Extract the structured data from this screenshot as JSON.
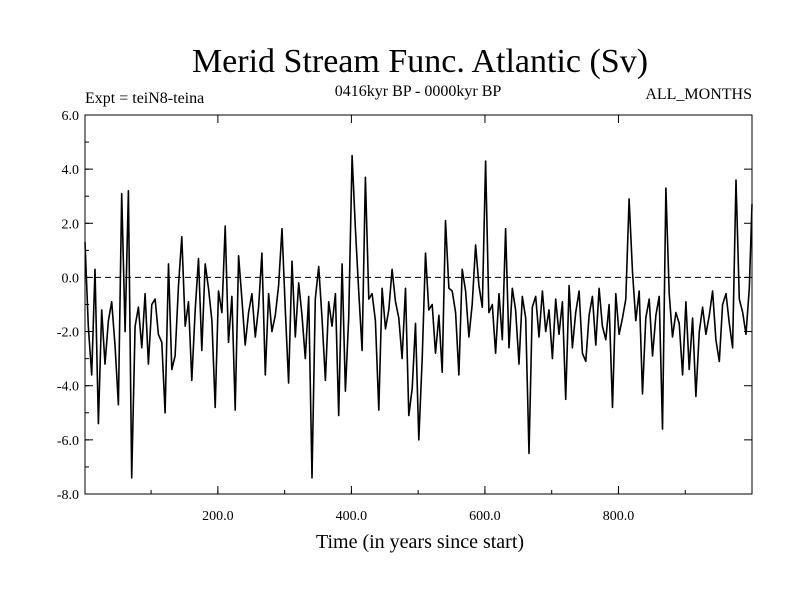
{
  "chart_data": {
    "type": "line",
    "title": "Merid Stream Func. Atlantic (Sv)",
    "subtitle_left": "Expt = teiN8-teina",
    "subtitle_center": "0416kyr BP - 0000kyr BP",
    "subtitle_right": "ALL_MONTHS",
    "xlabel": "Time (in years since start)",
    "ylabel": "",
    "xlim": [
      1,
      1000
    ],
    "ylim": [
      -8,
      6
    ],
    "x_ticks": [
      200,
      400,
      600,
      800
    ],
    "x_tick_labels": [
      "200.0",
      "400.0",
      "600.0",
      "800.0"
    ],
    "y_ticks": [
      6,
      4,
      2,
      0,
      -2,
      -4,
      -6,
      -8
    ],
    "y_tick_labels": [
      "6.0",
      "4.0",
      "2.0",
      "0.0",
      "-2.0",
      "-4.0",
      "-6.0",
      "-8.0"
    ],
    "zero_line": 0,
    "line_color": "#000000",
    "series": [
      {
        "name": "Merid Stream Func. Atlantic",
        "x_step": 5,
        "x_start": 1,
        "values": [
          1.3,
          -1.8,
          -3.6,
          0.3,
          -5.4,
          -1.2,
          -3.2,
          -1.6,
          -0.9,
          -2.5,
          -4.7,
          3.1,
          -2.0,
          3.2,
          -7.4,
          -1.8,
          -1.1,
          -2.6,
          -0.6,
          -3.2,
          -1.0,
          -0.8,
          -2.1,
          -2.4,
          -5.0,
          0.5,
          -3.4,
          -2.9,
          -0.3,
          1.5,
          -1.8,
          -0.9,
          -3.8,
          -1.2,
          0.7,
          -2.7,
          0.5,
          -0.4,
          -1.6,
          -4.8,
          -0.5,
          -1.3,
          1.9,
          -2.4,
          -0.7,
          -4.9,
          0.8,
          -0.8,
          -2.5,
          -1.3,
          -0.6,
          -2.2,
          -1.1,
          0.9,
          -3.6,
          -0.6,
          -2.0,
          -1.4,
          -0.3,
          1.8,
          -1.2,
          -3.9,
          0.6,
          -2.2,
          -0.2,
          -1.4,
          -3.0,
          -0.7,
          -7.4,
          -0.8,
          0.4,
          -1.5,
          -3.8,
          -0.9,
          -1.8,
          -0.6,
          -5.1,
          0.5,
          -4.2,
          -1.5,
          4.5,
          1.8,
          -0.5,
          -2.7,
          3.7,
          -0.8,
          -0.6,
          -1.6,
          -4.9,
          -0.4,
          -1.9,
          -1.2,
          0.3,
          -0.9,
          -1.5,
          -3.0,
          -0.4,
          -5.1,
          -4.1,
          -1.7,
          -6.0,
          -3.0,
          0.9,
          -1.2,
          -1.0,
          -2.8,
          -1.4,
          -3.5,
          2.1,
          -0.4,
          -0.5,
          -1.3,
          -3.6,
          0.3,
          -0.5,
          -2.2,
          -1.0,
          1.2,
          -0.3,
          -1.1,
          4.3,
          -1.3,
          -1.0,
          -2.8,
          -0.6,
          -2.3,
          1.8,
          -2.6,
          -0.4,
          -1.2,
          -3.2,
          -0.7,
          -1.5,
          -6.5,
          -1.1,
          -0.7,
          -2.2,
          -0.5,
          -2.0,
          -1.2,
          -3.0,
          -0.8,
          -2.1,
          -0.9,
          -4.5,
          -0.3,
          -2.6,
          -1.3,
          -0.5,
          -2.8,
          -3.1,
          -1.4,
          -0.7,
          -2.5,
          -0.4,
          -1.8,
          -2.3,
          -1.0,
          -4.8,
          -0.6,
          -2.1,
          -1.5,
          -0.8,
          2.9,
          0.2,
          -1.6,
          -0.5,
          -4.3,
          -1.5,
          -0.8,
          -2.9,
          -1.4,
          -0.7,
          -5.6,
          3.3,
          -0.6,
          -2.2,
          -1.3,
          -1.7,
          -3.6,
          -0.9,
          -3.4,
          -1.5,
          -4.4,
          -2.0,
          -1.1,
          -2.1,
          -1.4,
          -0.5,
          -2.3,
          -3.1,
          -1.0,
          -0.6,
          -1.7,
          -2.6,
          3.6,
          -0.8,
          -1.3,
          -2.1,
          -0.4,
          2.7
        ]
      }
    ]
  }
}
